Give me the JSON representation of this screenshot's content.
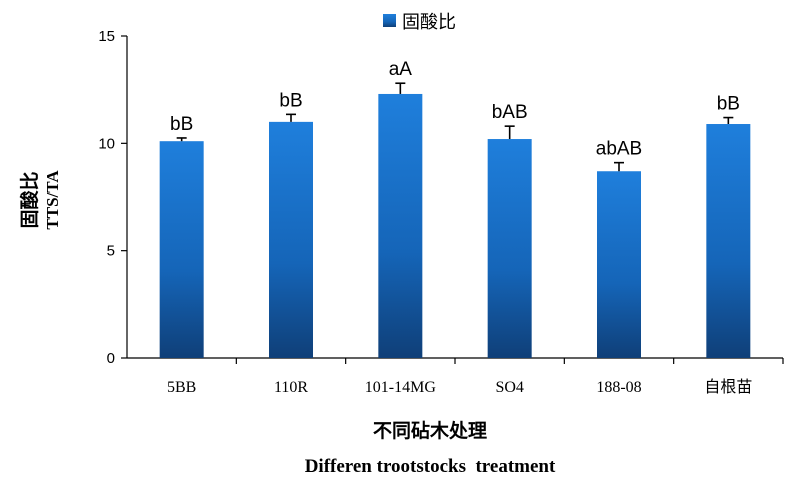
{
  "chart_data": {
    "type": "bar",
    "categories": [
      "5BB",
      "110R",
      "101-14MG",
      "SO4",
      "188-08",
      "自根苗"
    ],
    "series": [
      {
        "name": "固酸比",
        "values": [
          10.1,
          11.0,
          12.3,
          10.2,
          8.7,
          10.9
        ],
        "errors": [
          0.15,
          0.35,
          0.5,
          0.6,
          0.4,
          0.3
        ],
        "labels": [
          "bB",
          "bB",
          "aA",
          "bAB",
          "abAB",
          "bB"
        ],
        "color": "#1a6fc4"
      }
    ],
    "ylabel_cn": "固酸比",
    "ylabel_en": "TTS/TA",
    "xlabel_cn": "不同砧木处理",
    "xlabel_en": "Differen trootstocks  treatment",
    "ylim": [
      0,
      15
    ],
    "yticks": [
      0,
      5,
      10,
      15
    ],
    "legend_position": "top-center",
    "grid": false
  }
}
